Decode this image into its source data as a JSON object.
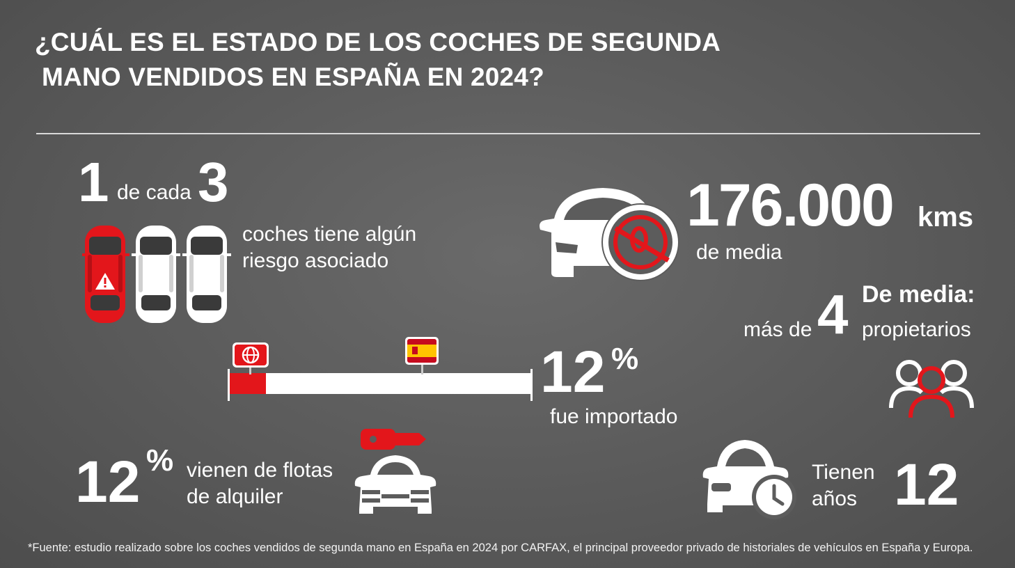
{
  "title": {
    "line1": "¿CUÁL ES EL ESTADO DE LOS COCHES DE SEGUNDA",
    "line2": "MANO VENDIDOS EN ESPAÑA EN 2024?"
  },
  "risk": {
    "num1": "1",
    "mid": "de cada",
    "num2": "3",
    "desc_line1": "coches tiene algún",
    "desc_line2": "riesgo asociado"
  },
  "mileage": {
    "value": "176.000",
    "unit": "kms",
    "sub": "de media"
  },
  "owners": {
    "label_top": "De media:",
    "prefix": "más de",
    "value": "4",
    "label_bottom": "propietarios"
  },
  "import": {
    "value": "12",
    "unit": "%",
    "label": "fue importado",
    "share": 0.12
  },
  "rental": {
    "value": "12",
    "unit": "%",
    "desc_line1": "vienen de flotas",
    "desc_line2": "de alquiler"
  },
  "age": {
    "label_line1": "Tienen",
    "label_line2": "años",
    "value": "12"
  },
  "footnote": "*Fuente: estudio realizado sobre los coches vendidos de segunda mano en España en 2024 por CARFAX, el principal proveedor privado de historiales de vehículos en España y Europa.",
  "colors": {
    "accent": "#e3161b",
    "white": "#ffffff",
    "spain_red": "#c60b1e",
    "spain_yellow": "#ffc400"
  }
}
